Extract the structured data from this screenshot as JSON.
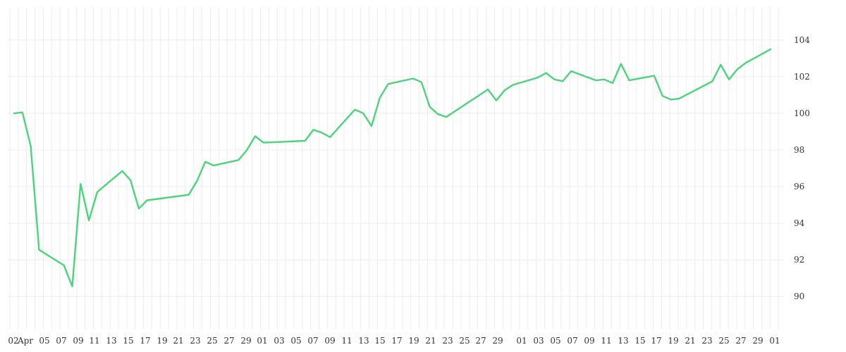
{
  "chart_data": {
    "type": "line",
    "title": "",
    "xlabel": "",
    "ylabel": "",
    "ylim": [
      88.2,
      105.8
    ],
    "y_ticks": [
      90,
      92,
      94,
      96,
      98,
      100,
      102,
      104
    ],
    "x_tick_labels": [
      "02",
      "Apr",
      "05",
      "07",
      "09",
      "11",
      "13",
      "15",
      "17",
      "19",
      "21",
      "23",
      "25",
      "27",
      "29",
      "01",
      "03",
      "05",
      "07",
      "09",
      "11",
      "13",
      "15",
      "17",
      "19",
      "21",
      "23",
      "25",
      "27",
      "29",
      "01",
      "03",
      "05",
      "07",
      "09",
      "11",
      "13",
      "15",
      "17",
      "19",
      "21",
      "23",
      "25",
      "27",
      "29",
      "01"
    ],
    "grid": true,
    "line_color": "#4cd37b",
    "x": [
      "04-02",
      "04-03",
      "04-04",
      "04-05",
      "04-08",
      "04-09",
      "04-10",
      "04-11",
      "04-12",
      "04-15",
      "04-16",
      "04-17",
      "04-18",
      "04-23",
      "04-24",
      "04-25",
      "04-26",
      "04-29",
      "04-30",
      "05-01",
      "05-02",
      "05-07",
      "05-08",
      "05-09",
      "05-10",
      "05-13",
      "05-14",
      "05-15",
      "05-16",
      "05-17",
      "05-20",
      "05-21",
      "05-22",
      "05-23",
      "05-24",
      "05-29",
      "05-30",
      "05-31",
      "06-01",
      "06-04",
      "06-05",
      "06-06",
      "06-07",
      "06-08",
      "06-11",
      "06-12",
      "06-13",
      "06-14",
      "06-15",
      "06-18",
      "06-19",
      "06-20",
      "06-21",
      "06-25",
      "06-26",
      "06-27",
      "06-28",
      "06-29",
      "07-02"
    ],
    "values": [
      100.0,
      100.05,
      98.2,
      92.55,
      91.7,
      90.55,
      96.15,
      94.15,
      95.7,
      96.85,
      96.35,
      94.8,
      95.25,
      95.55,
      96.3,
      97.35,
      97.15,
      97.45,
      98.0,
      98.75,
      98.4,
      98.5,
      99.1,
      98.95,
      98.7,
      100.2,
      100.0,
      99.3,
      100.85,
      101.6,
      101.9,
      101.7,
      100.35,
      99.95,
      99.8,
      101.3,
      100.7,
      101.25,
      101.55,
      101.95,
      102.2,
      101.85,
      101.75,
      102.3,
      101.8,
      101.85,
      101.65,
      102.7,
      101.8,
      102.05,
      100.95,
      100.75,
      100.8,
      101.75,
      102.65,
      101.85,
      102.4,
      102.75,
      103.5
    ]
  }
}
